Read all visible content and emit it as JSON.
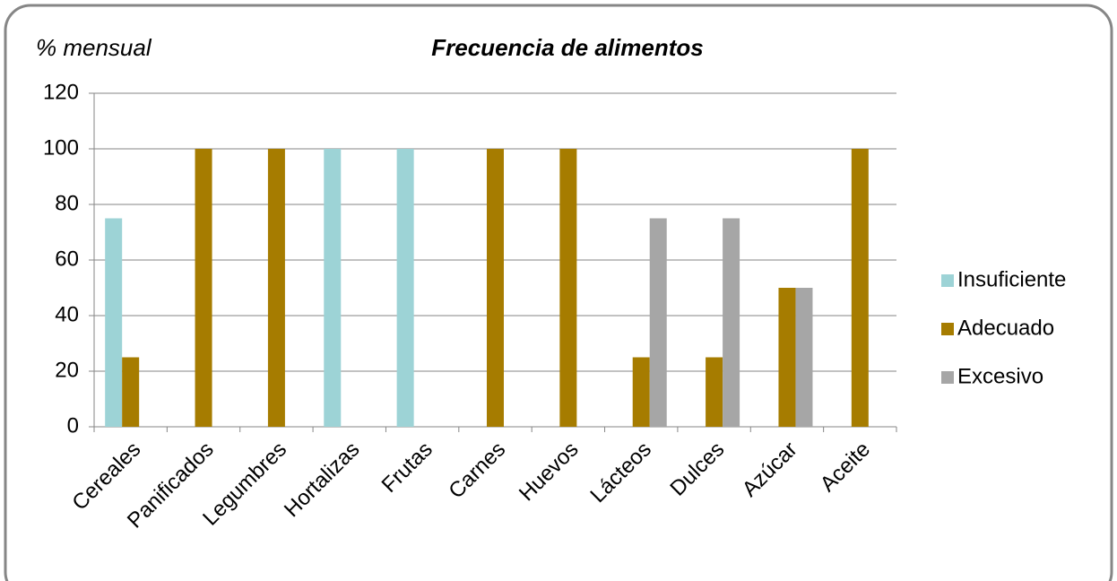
{
  "chart_data": {
    "type": "bar",
    "title": "Frecuencia de alimentos",
    "y_label": "% mensual",
    "categories": [
      "Cereales",
      "Panificados",
      "Legumbres",
      "Hortalizas",
      "Frutas",
      "Carnes",
      "Huevos",
      "Lácteos",
      "Dulces",
      "Azúcar",
      "Aceite"
    ],
    "series": [
      {
        "name": "Insuficiente",
        "color": "#9dd3d6",
        "values": [
          75,
          0,
          0,
          100,
          100,
          0,
          0,
          0,
          0,
          0,
          0
        ]
      },
      {
        "name": "Adecuado",
        "color": "#a67c00",
        "values": [
          25,
          100,
          100,
          0,
          0,
          100,
          100,
          25,
          25,
          50,
          100
        ]
      },
      {
        "name": "Excesivo",
        "color": "#a6a6a6",
        "values": [
          0,
          0,
          0,
          0,
          0,
          0,
          0,
          75,
          75,
          50,
          0
        ]
      }
    ],
    "ylim": [
      0,
      120
    ],
    "yticks": [
      0,
      20,
      40,
      60,
      80,
      100,
      120
    ],
    "grid": true,
    "legend": "right"
  }
}
